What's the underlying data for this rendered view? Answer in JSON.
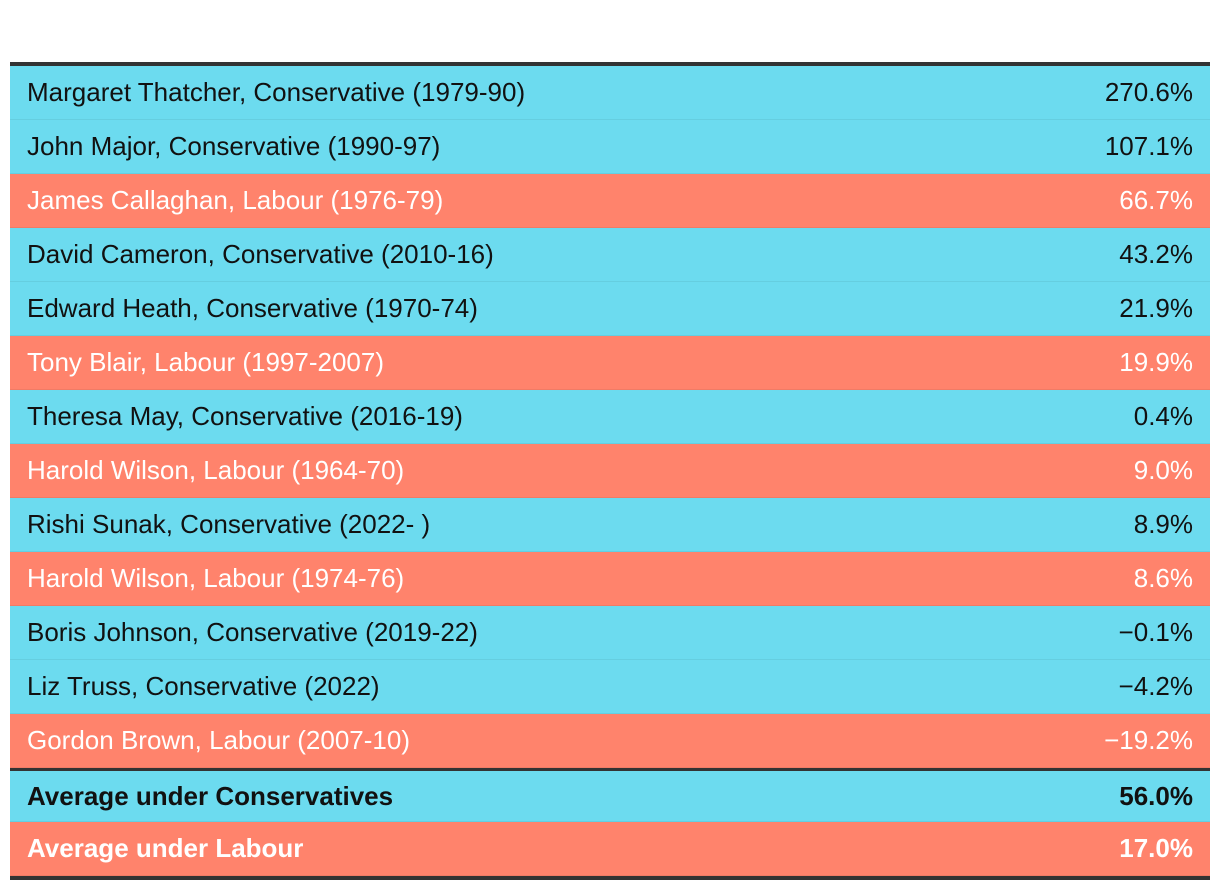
{
  "colors": {
    "Conservative": "#6cdbef",
    "Labour": "#ff836c"
  },
  "chart_data": {
    "type": "table",
    "rows": [
      {
        "name": "Margaret Thatcher, Conservative (1979-90)",
        "value": "270.6%",
        "party": "Conservative"
      },
      {
        "name": "John Major, Conservative (1990-97)",
        "value": "107.1%",
        "party": "Conservative"
      },
      {
        "name": "James Callaghan, Labour (1976-79)",
        "value": "66.7%",
        "party": "Labour"
      },
      {
        "name": "David Cameron, Conservative (2010-16)",
        "value": "43.2%",
        "party": "Conservative"
      },
      {
        "name": "Edward Heath, Conservative (1970-74)",
        "value": "21.9%",
        "party": "Conservative"
      },
      {
        "name": "Tony Blair, Labour (1997-2007)",
        "value": "19.9%",
        "party": "Labour"
      },
      {
        "name": "Theresa May, Conservative (2016-19)",
        "value": "0.4%",
        "party": "Conservative"
      },
      {
        "name": "Harold Wilson, Labour (1964-70)",
        "value": "9.0%",
        "party": "Labour"
      },
      {
        "name": "Rishi Sunak, Conservative (2022- )",
        "value": "8.9%",
        "party": "Conservative"
      },
      {
        "name": "Harold Wilson, Labour (1974-76)",
        "value": "8.6%",
        "party": "Labour"
      },
      {
        "name": "Boris Johnson, Conservative (2019-22)",
        "value": "−0.1%",
        "party": "Conservative"
      },
      {
        "name": "Liz Truss, Conservative (2022)",
        "value": "−4.2%",
        "party": "Conservative"
      },
      {
        "name": "Gordon Brown, Labour (2007-10)",
        "value": "−19.2%",
        "party": "Labour"
      }
    ],
    "averages": [
      {
        "name": "Average under Conservatives",
        "value": "56.0%",
        "party": "Conservative"
      },
      {
        "name": "Average under Labour",
        "value": "17.0%",
        "party": "Labour"
      }
    ]
  }
}
